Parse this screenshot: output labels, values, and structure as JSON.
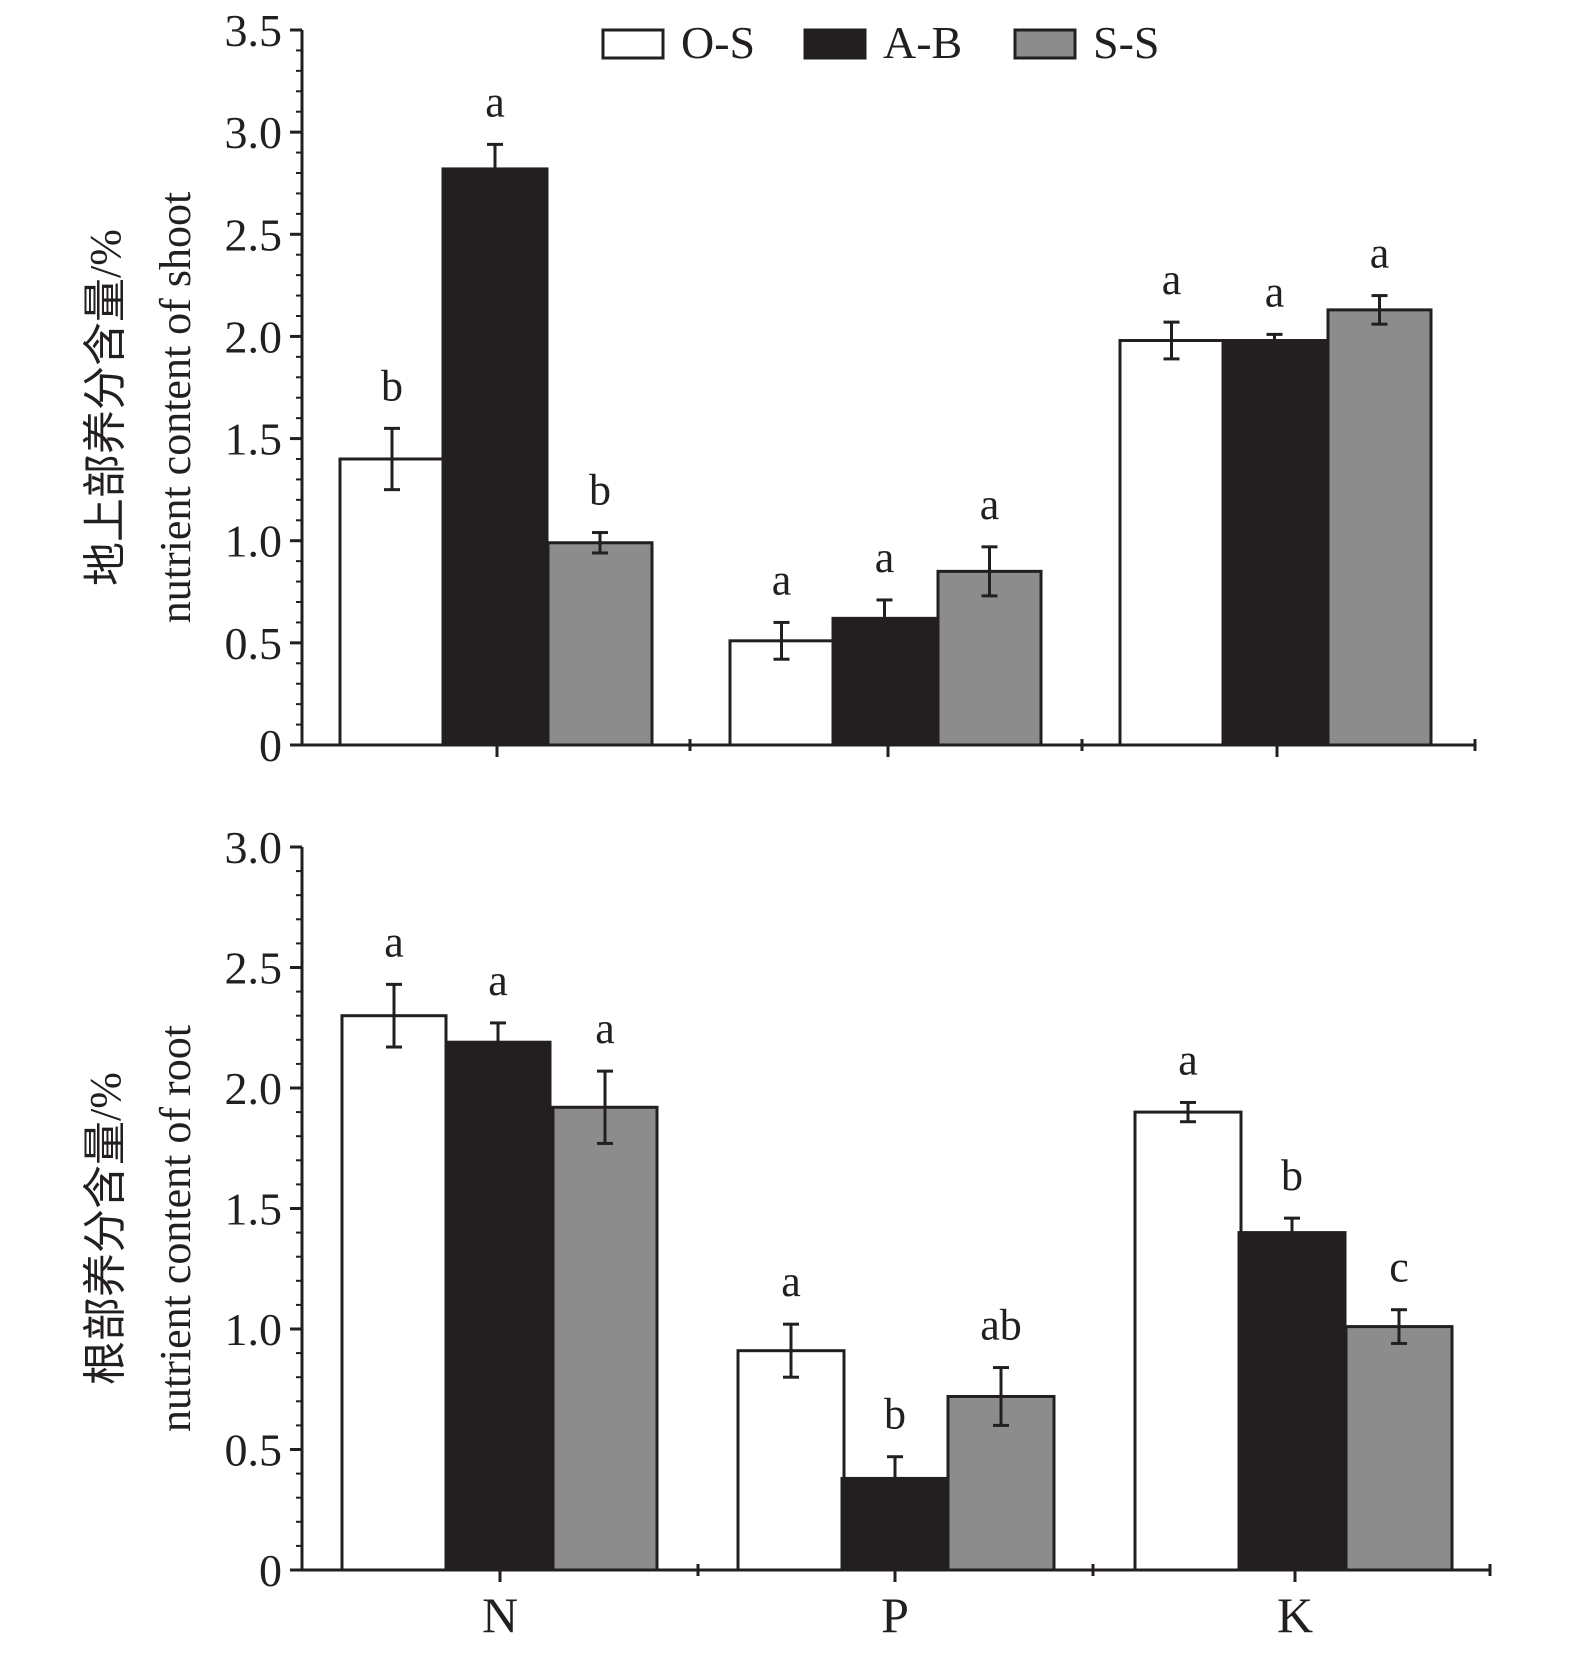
{
  "legend": {
    "entries": [
      {
        "name": "O-S",
        "color": "#ffffff"
      },
      {
        "name": "A-B",
        "color": "#231f20"
      },
      {
        "name": "S-S",
        "color": "#8c8c8c"
      }
    ]
  },
  "chart_data": [
    {
      "type": "bar",
      "title": "",
      "ylabel_cn": "地上部养分含量/%",
      "ylabel_en": "nutrient content of shoot",
      "ylim": [
        0,
        3.5
      ],
      "yticks": [
        0,
        0.5,
        1.0,
        1.5,
        2.0,
        2.5,
        3.0,
        3.5
      ],
      "ytick_labels": [
        "0",
        "0.5",
        "1.0",
        "1.5",
        "2.0",
        "2.5",
        "3.0",
        "3.5"
      ],
      "categories": [
        "N",
        "P",
        "K"
      ],
      "show_category_labels": false,
      "series": [
        {
          "name": "O-S",
          "color": "#ffffff",
          "values": [
            1.4,
            0.51,
            1.98
          ],
          "errors": [
            0.15,
            0.09,
            0.09
          ],
          "labels": [
            "b",
            "a",
            "a"
          ]
        },
        {
          "name": "A-B",
          "color": "#231f20",
          "values": [
            2.82,
            0.62,
            1.98
          ],
          "errors": [
            0.12,
            0.09,
            0.03
          ],
          "labels": [
            "a",
            "a",
            "a"
          ]
        },
        {
          "name": "S-S",
          "color": "#8c8c8c",
          "values": [
            0.99,
            0.85,
            2.13
          ],
          "errors": [
            0.05,
            0.12,
            0.07
          ],
          "labels": [
            "b",
            "a",
            "a"
          ]
        }
      ]
    },
    {
      "type": "bar",
      "title": "",
      "ylabel_cn": "根部养分含量/%",
      "ylabel_en": "nutrient content of root",
      "ylim": [
        0,
        3.0
      ],
      "yticks": [
        0,
        0.5,
        1.0,
        1.5,
        2.0,
        2.5,
        3.0
      ],
      "ytick_labels": [
        "0",
        "0.5",
        "1.0",
        "1.5",
        "2.0",
        "2.5",
        "3.0"
      ],
      "categories": [
        "N",
        "P",
        "K"
      ],
      "show_category_labels": true,
      "series": [
        {
          "name": "O-S",
          "color": "#ffffff",
          "values": [
            2.3,
            0.91,
            1.9
          ],
          "errors": [
            0.13,
            0.11,
            0.04
          ],
          "labels": [
            "a",
            "a",
            "a"
          ]
        },
        {
          "name": "A-B",
          "color": "#231f20",
          "values": [
            2.19,
            0.38,
            1.4
          ],
          "errors": [
            0.08,
            0.09,
            0.06
          ],
          "labels": [
            "a",
            "b",
            "b"
          ]
        },
        {
          "name": "S-S",
          "color": "#8c8c8c",
          "values": [
            1.92,
            0.72,
            1.01
          ],
          "errors": [
            0.15,
            0.12,
            0.07
          ],
          "labels": [
            "a",
            "ab",
            "c"
          ]
        }
      ]
    }
  ]
}
